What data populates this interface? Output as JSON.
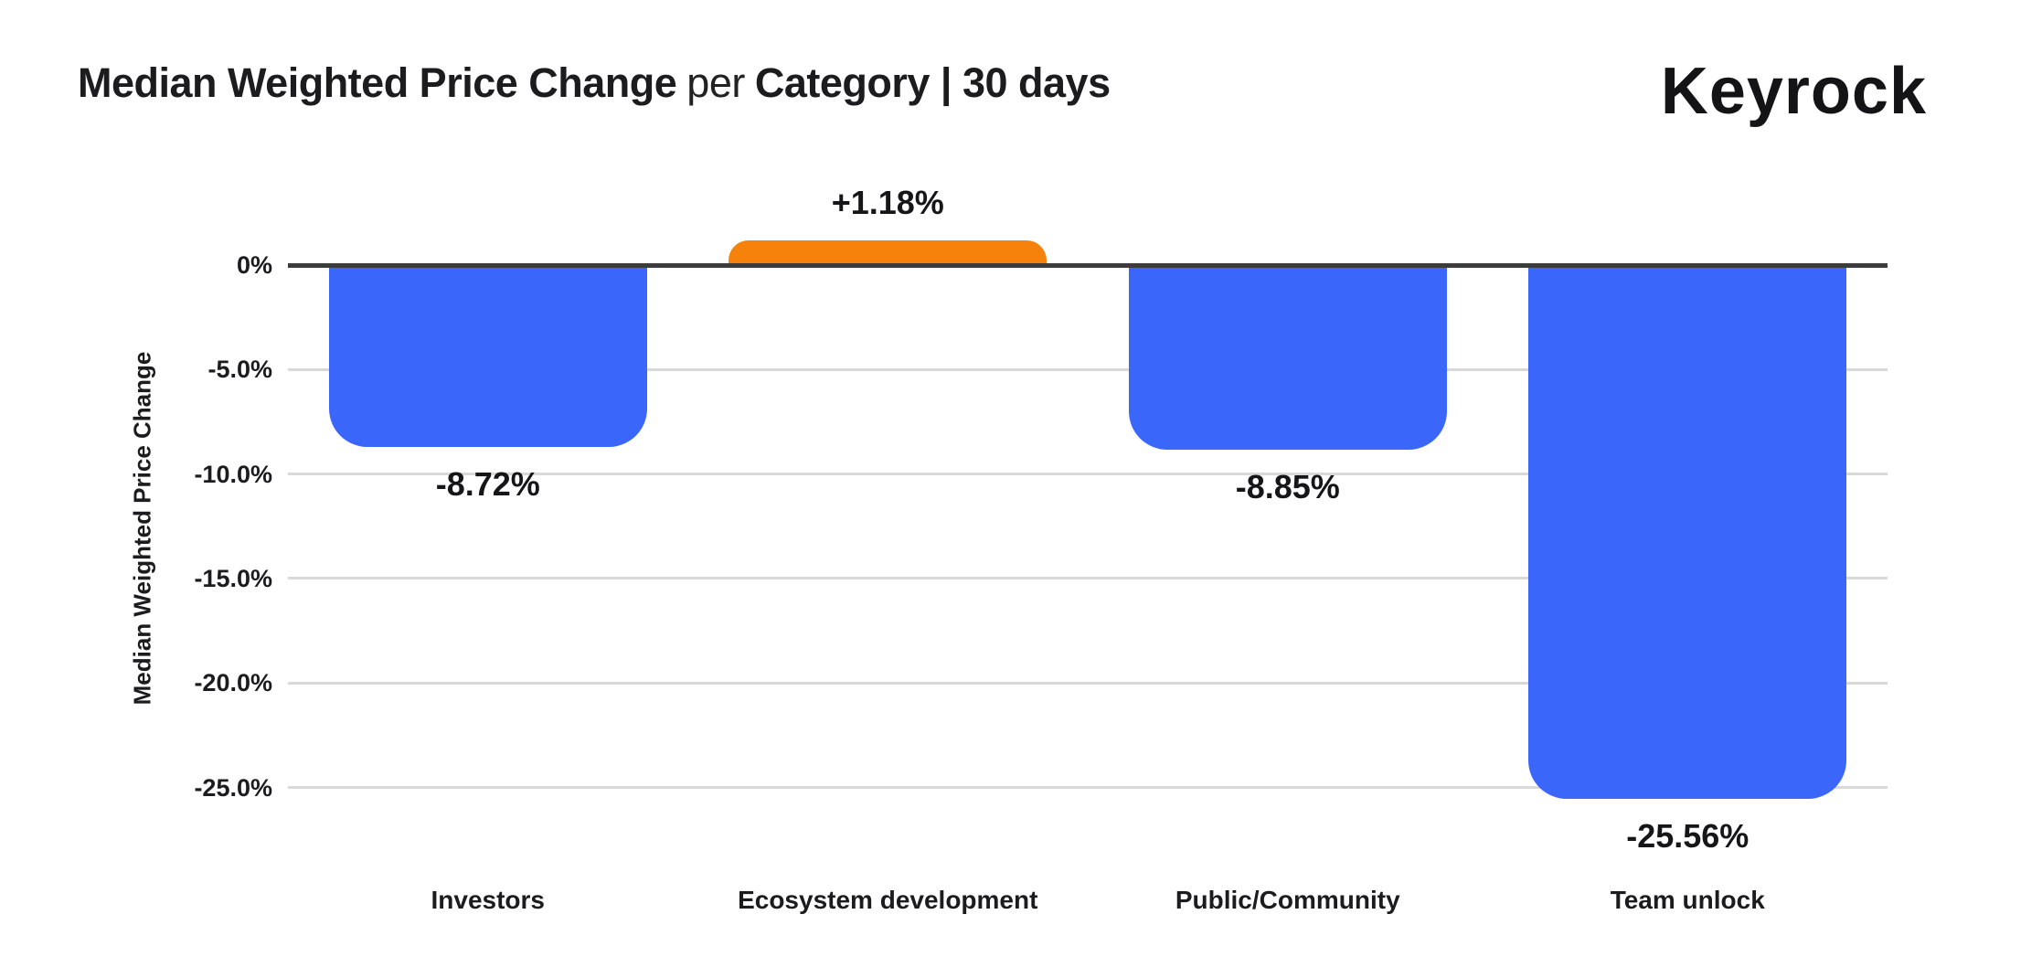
{
  "header": {
    "title_part1": "Median Weighted Price Change",
    "title_part2": "per",
    "title_part3": "Category | 30 days",
    "logo_text": "Keyrock"
  },
  "chart_data": {
    "type": "bar",
    "title": "Median Weighted Price Change per Category | 30 days",
    "period": "30 days",
    "categories": [
      "Investors",
      "Ecosystem development",
      "Public/Community",
      "Team unlock"
    ],
    "values": [
      -8.72,
      1.18,
      -8.85,
      -25.56
    ],
    "data_labels": [
      "-8.72%",
      "+1.18%",
      "-8.85%",
      "-25.56%"
    ],
    "xlabel": "",
    "ylabel": "Median Weighted Price Change",
    "yticks": [
      {
        "value": 0,
        "label": "0%"
      },
      {
        "value": -5,
        "label": "-5.0%"
      },
      {
        "value": -10,
        "label": "-10.0%"
      },
      {
        "value": -15,
        "label": "-15.0%"
      },
      {
        "value": -20,
        "label": "-20.0%"
      },
      {
        "value": -25,
        "label": "-25.0%"
      }
    ],
    "ylim": [
      -28.5,
      2.5
    ],
    "grid": true,
    "legend": "none",
    "colors": {
      "negative_bar": "#3B66FA",
      "positive_bar": "#F7820B",
      "zero_line": "#3C3C3C",
      "gridline": "#D9D9D9",
      "text": "#1C1C1E",
      "background": "#FFFFFF"
    }
  }
}
